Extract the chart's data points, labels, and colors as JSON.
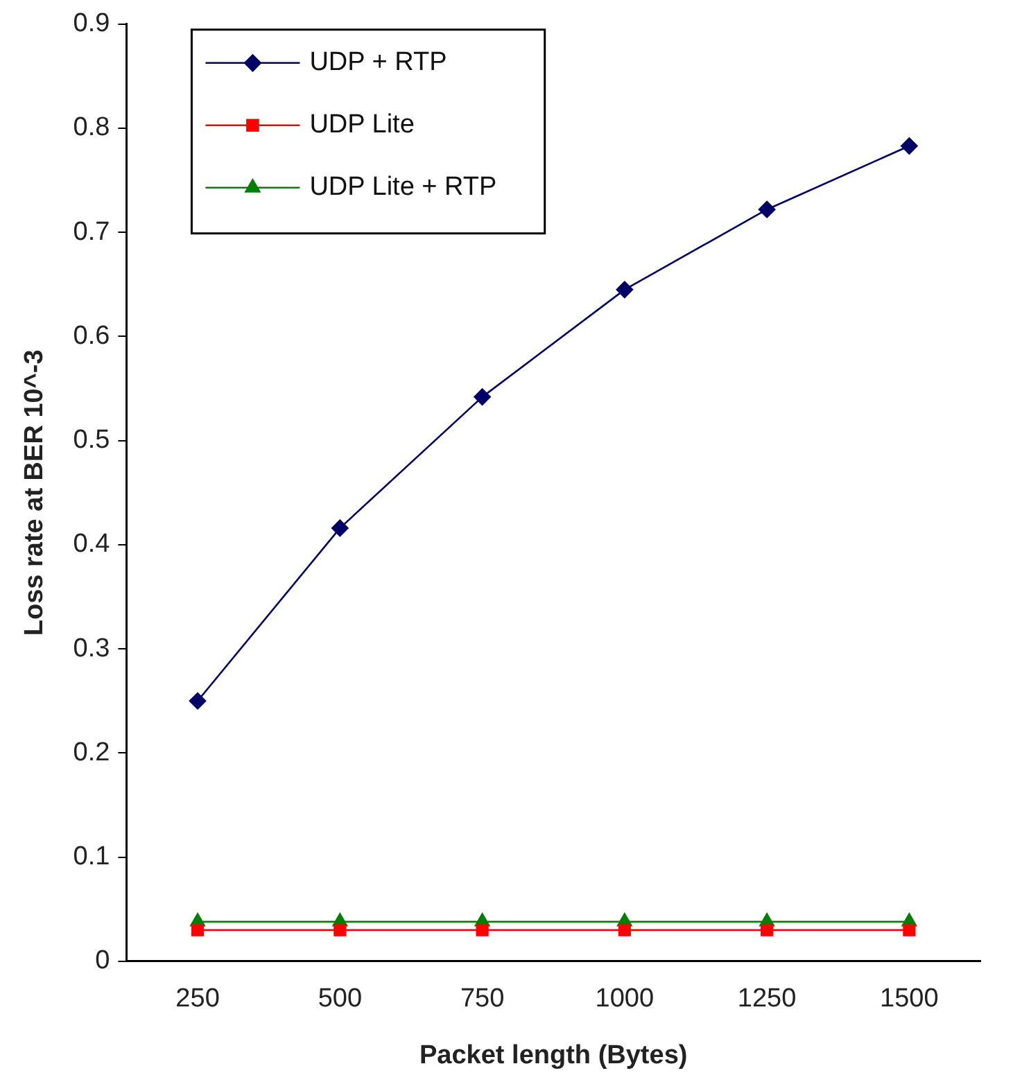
{
  "chart_data": {
    "type": "line",
    "xlabel": "Packet length (Bytes)",
    "ylabel": "Loss rate at BER 10^-3",
    "categories": [
      "250",
      "500",
      "750",
      "1000",
      "1250",
      "1500"
    ],
    "series": [
      {
        "name": "UDP + RTP",
        "color": "#000066",
        "marker": "diamond",
        "values": [
          0.25,
          0.416,
          0.542,
          0.645,
          0.722,
          0.783
        ]
      },
      {
        "name": "UDP Lite",
        "color": "#ff0000",
        "marker": "square",
        "values": [
          0.03,
          0.03,
          0.03,
          0.03,
          0.03,
          0.03
        ]
      },
      {
        "name": "UDP Lite + RTP",
        "color": "#008000",
        "marker": "triangle",
        "values": [
          0.038,
          0.038,
          0.038,
          0.038,
          0.038,
          0.038
        ]
      }
    ],
    "ylim": [
      0,
      0.9
    ],
    "yticks": [
      0,
      0.1,
      0.2,
      0.3,
      0.4,
      0.5,
      0.6,
      0.7,
      0.8,
      0.9
    ],
    "grid": false,
    "legend": "top left",
    "line_style": "solid"
  }
}
